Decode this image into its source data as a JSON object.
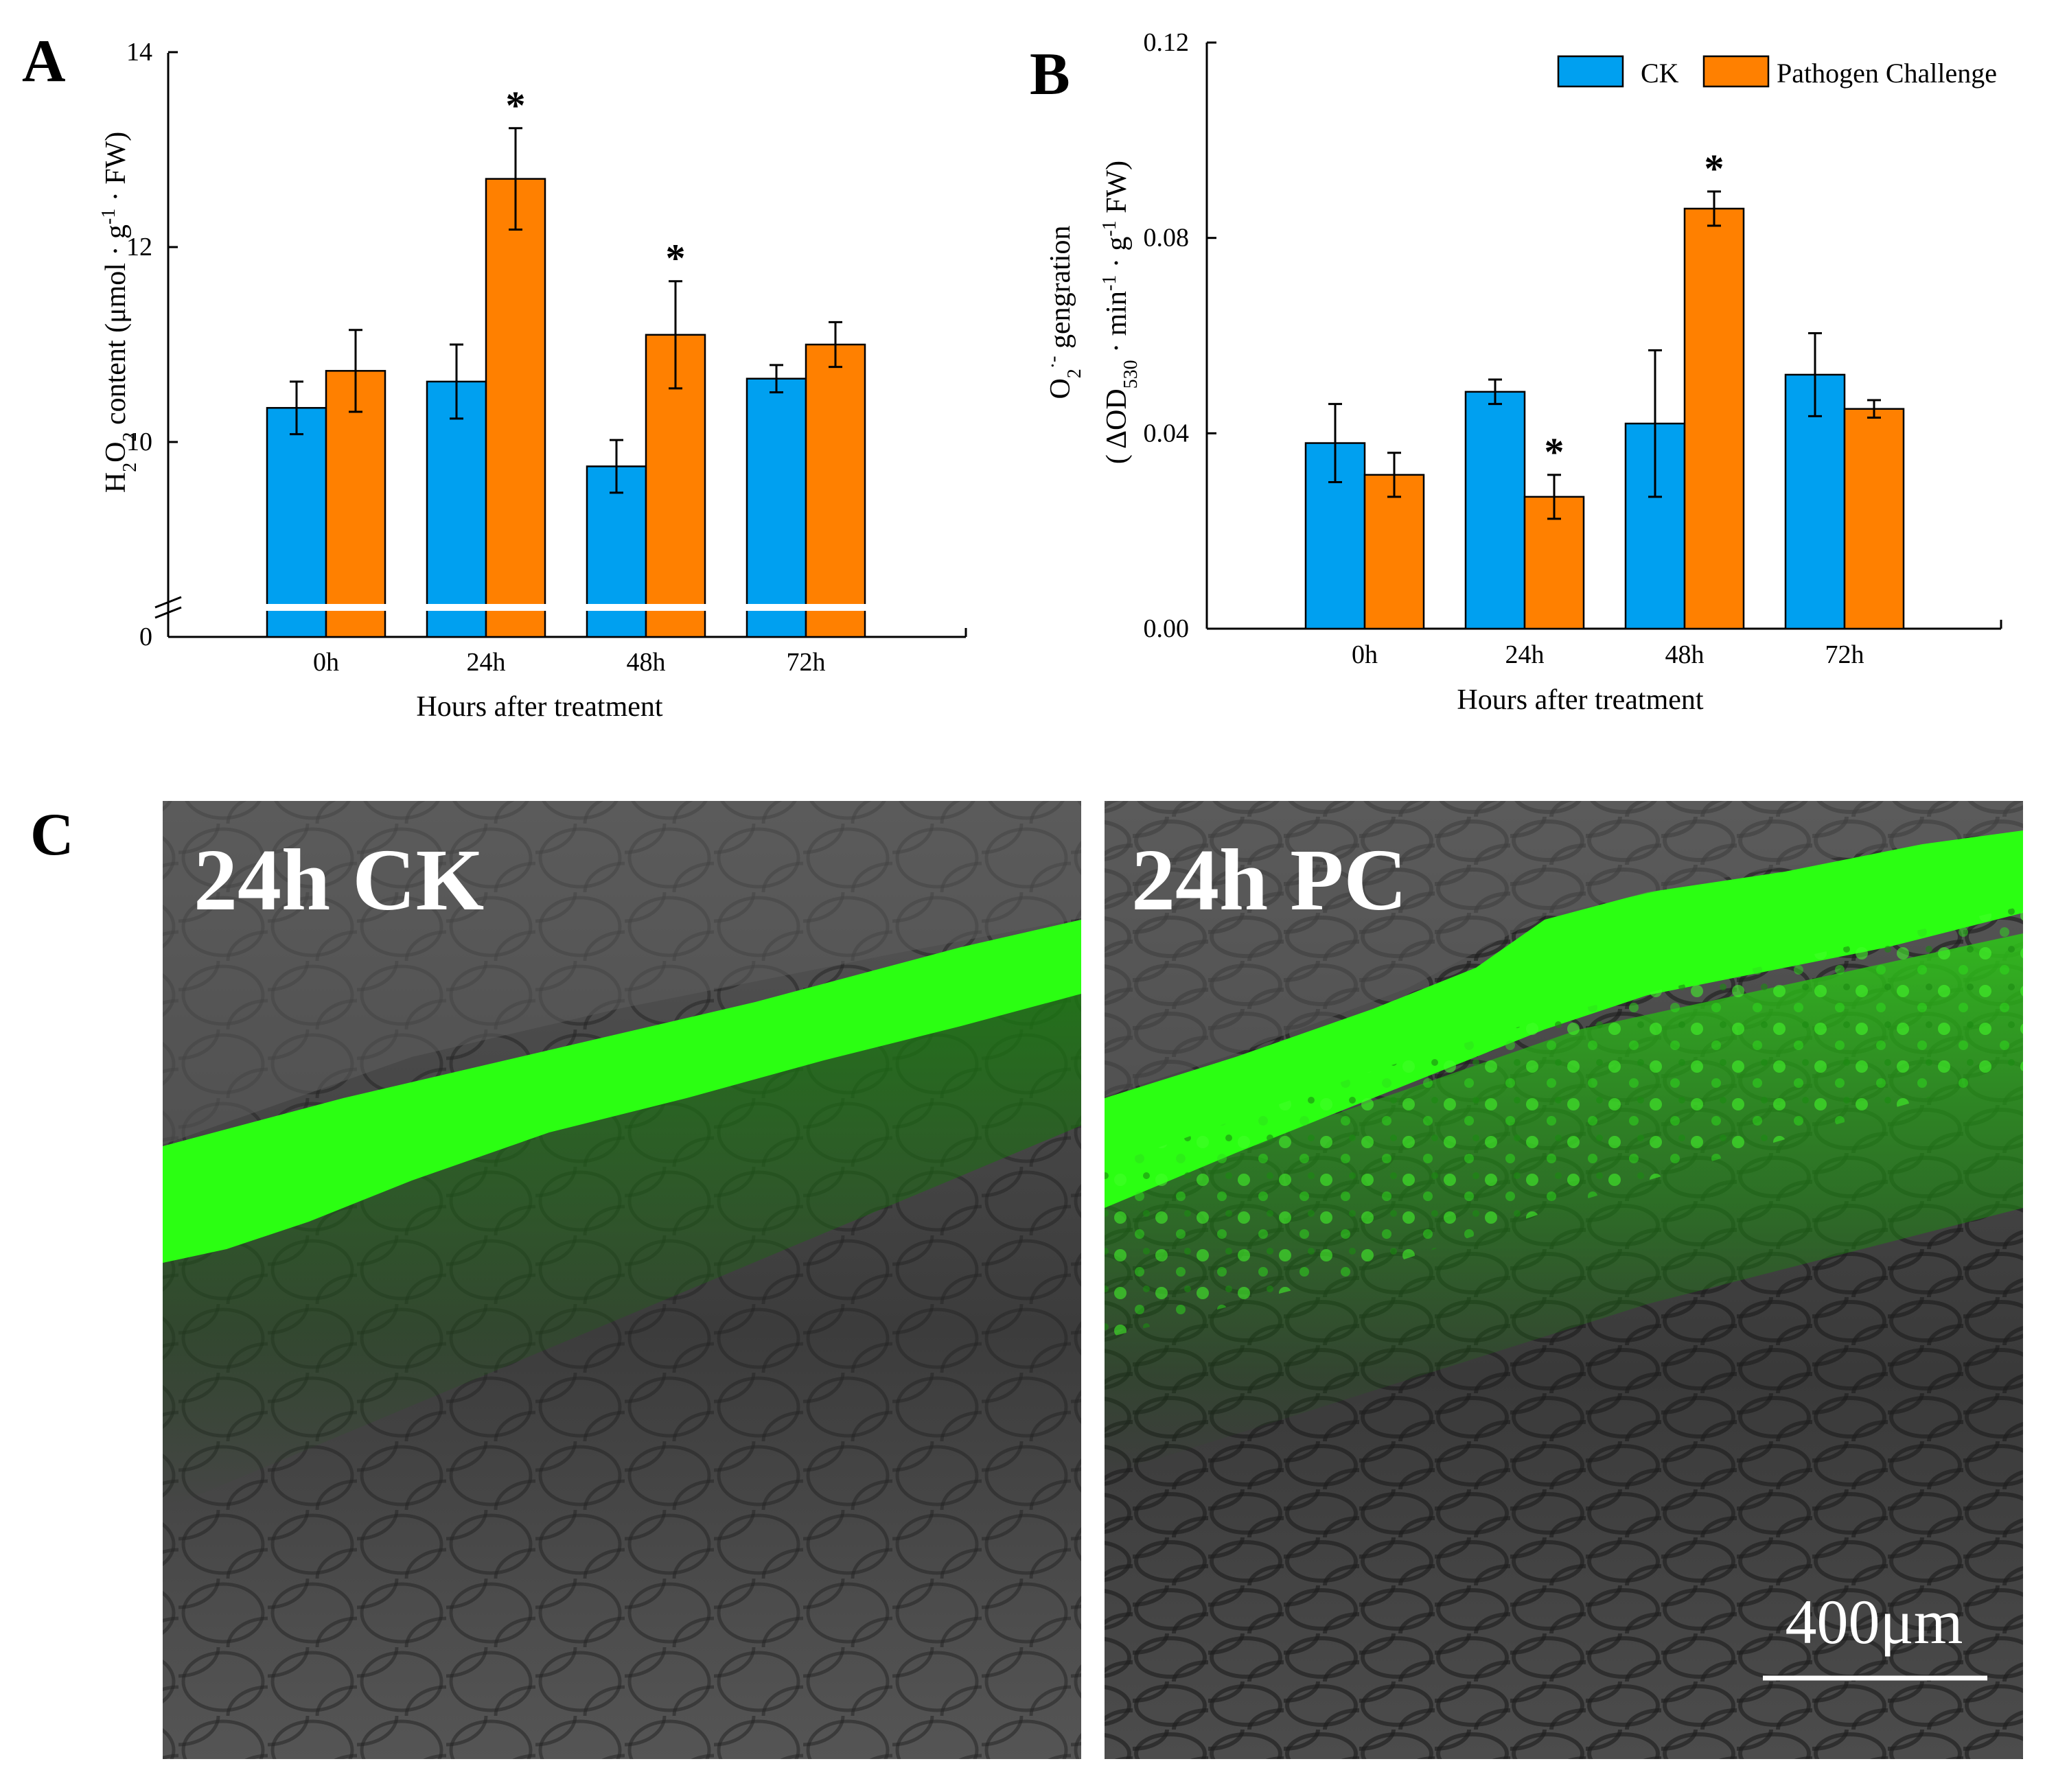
{
  "colors": {
    "ck": "#00A0F0",
    "pc": "#FF8000",
    "axis": "#000000",
    "fluorescence": "#2BFF12"
  },
  "panels": {
    "a_label": "A",
    "b_label": "B",
    "c_label": "C"
  },
  "chart_data": [
    {
      "panel": "A",
      "type": "bar",
      "categories": [
        "0h",
        "24h",
        "48h",
        "72h"
      ],
      "series": [
        {
          "name": "CK",
          "values": [
            10.35,
            10.62,
            9.75,
            10.65
          ],
          "errors": [
            0.27,
            0.38,
            0.27,
            0.14
          ],
          "significant": [
            false,
            false,
            false,
            false
          ]
        },
        {
          "name": "Pathogen Challenge",
          "values": [
            10.73,
            12.7,
            11.1,
            11.0
          ],
          "errors": [
            0.42,
            0.52,
            0.55,
            0.23
          ],
          "significant": [
            false,
            true,
            true,
            false
          ]
        }
      ],
      "ylim": [
        8,
        14
      ],
      "axis_break": true,
      "yticks": [
        10,
        12,
        14
      ],
      "ytick_labels": [
        "10",
        "12",
        "14"
      ],
      "bottom_tick_label": "0",
      "xlabel": "Hours after treatment",
      "ylabel": "H2O2 content (μmol · g-1 · FW)",
      "significance_marker": "*"
    },
    {
      "panel": "B",
      "type": "bar",
      "categories": [
        "0h",
        "24h",
        "48h",
        "72h"
      ],
      "series": [
        {
          "name": "CK",
          "values": [
            0.038,
            0.0485,
            0.042,
            0.052
          ],
          "errors": [
            0.008,
            0.0025,
            0.015,
            0.0085
          ],
          "significant": [
            false,
            false,
            false,
            false
          ]
        },
        {
          "name": "Pathogen Challenge",
          "values": [
            0.0315,
            0.027,
            0.086,
            0.045
          ],
          "errors": [
            0.0045,
            0.0045,
            0.0035,
            0.0018
          ],
          "significant": [
            false,
            true,
            true,
            false
          ]
        }
      ],
      "ylim": [
        0,
        0.12
      ],
      "yticks": [
        0,
        0.04,
        0.08,
        0.12
      ],
      "ytick_labels": [
        "0.00",
        "0.04",
        "0.08",
        "0.12"
      ],
      "xlabel": "Hours after treatment",
      "ylabel_line1": "O2·- gengration",
      "ylabel_line2": "( ΔOD530 · min-1 · g-1 FW)",
      "legend": [
        "CK",
        "Pathogen Challenge"
      ],
      "legend_position": "top-right",
      "significance_marker": "*"
    }
  ],
  "micrographs": {
    "left_label": "24h CK",
    "right_label": "24h PC",
    "scale_bar_label": "400μm"
  }
}
